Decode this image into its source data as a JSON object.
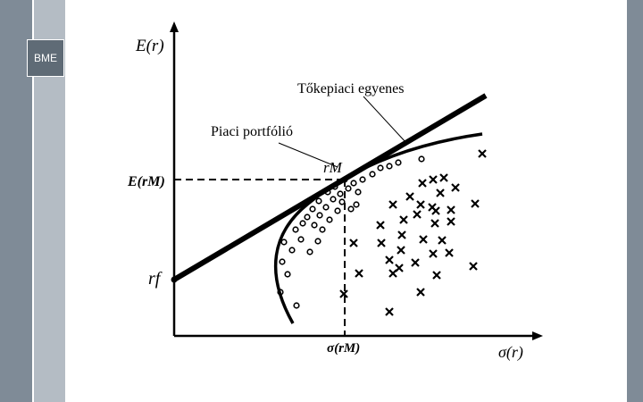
{
  "logo": {
    "text": "BME"
  },
  "axis": {
    "y_label_main": "E(r)",
    "x_label_main": "σ(r)"
  },
  "labels": {
    "cml": "Tőkepiaci egyenes",
    "market_portfolio": "Piaci portfólió",
    "rm": "rM",
    "e_rm": "E(rM)",
    "rf": "rf",
    "sigma_rm": "σ(rM)"
  },
  "colors": {
    "sidebar_dark": "#7f8b97",
    "sidebar_light": "#b4bcc4",
    "logo_bg": "#5f6b76",
    "ink": "#000000"
  }
}
